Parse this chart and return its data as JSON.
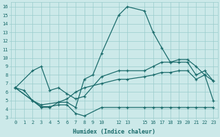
{
  "xlabel": "Humidex (Indice chaleur)",
  "bg_color": "#cce9e9",
  "grid_color": "#99cccc",
  "line_color": "#1a6b6b",
  "xlim": [
    -0.5,
    23.5
  ],
  "ylim": [
    3,
    16.5
  ],
  "xticks": [
    0,
    1,
    2,
    3,
    4,
    5,
    6,
    7,
    8,
    9,
    10,
    12,
    13,
    15,
    16,
    17,
    18,
    19,
    20,
    21,
    22,
    23
  ],
  "yticks": [
    3,
    4,
    5,
    6,
    7,
    8,
    9,
    10,
    11,
    12,
    13,
    14,
    15,
    16
  ],
  "line1_x": [
    0,
    1,
    2,
    3,
    4,
    5,
    6,
    7,
    8,
    9,
    10,
    12,
    13,
    15,
    16,
    17,
    18,
    19,
    20,
    21,
    22,
    23
  ],
  "line1_y": [
    6.5,
    6.2,
    5.0,
    4.2,
    4.2,
    4.8,
    4.8,
    4.2,
    7.5,
    8.0,
    10.5,
    15.0,
    16.0,
    15.5,
    13.0,
    11.2,
    9.5,
    9.8,
    9.8,
    9.0,
    8.0,
    5.0
  ],
  "line2_x": [
    0,
    2,
    3,
    4,
    5,
    6,
    7,
    8,
    10,
    12,
    13,
    15,
    16,
    17,
    18,
    19,
    20,
    21,
    22,
    23
  ],
  "line2_y": [
    6.5,
    8.5,
    9.0,
    6.2,
    6.5,
    5.8,
    5.2,
    5.5,
    7.8,
    8.5,
    8.5,
    8.5,
    9.0,
    9.5,
    9.5,
    9.5,
    9.5,
    8.0,
    8.5,
    7.3
  ],
  "line3_x": [
    0,
    2,
    3,
    5,
    6,
    7,
    8,
    10,
    12,
    13,
    15,
    16,
    17,
    18,
    19,
    20,
    21,
    22,
    23
  ],
  "line3_y": [
    6.5,
    5.0,
    4.5,
    4.8,
    5.2,
    6.0,
    6.5,
    7.0,
    7.5,
    7.5,
    7.8,
    8.0,
    8.3,
    8.3,
    8.5,
    8.5,
    7.5,
    8.0,
    7.3
  ],
  "line4_x": [
    0,
    2,
    3,
    4,
    5,
    6,
    7,
    8,
    10,
    12,
    13,
    15,
    16,
    17,
    18,
    19,
    20,
    21,
    22,
    23
  ],
  "line4_y": [
    6.5,
    5.0,
    4.3,
    4.3,
    4.5,
    4.5,
    3.5,
    3.2,
    4.2,
    4.2,
    4.2,
    4.2,
    4.2,
    4.2,
    4.2,
    4.2,
    4.2,
    4.2,
    4.2,
    4.2
  ]
}
